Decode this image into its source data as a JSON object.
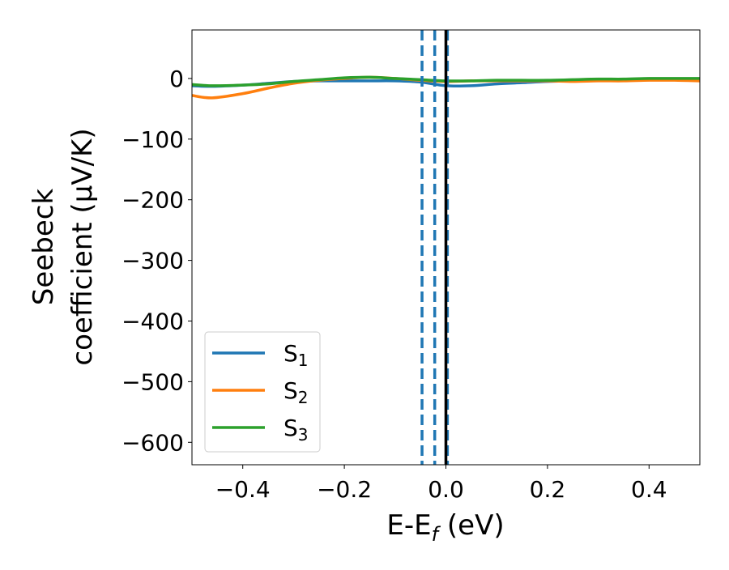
{
  "chart_data": {
    "type": "line",
    "title": "",
    "xlabel": {
      "main": "E-E",
      "sub": "f",
      "unit": " (eV)"
    },
    "ylabel": {
      "line1": "Seebeck",
      "line2": "coefficient  (μV/K)"
    },
    "xlim": [
      -0.5,
      0.5
    ],
    "ylim": [
      -637,
      80
    ],
    "xticks": [
      -0.4,
      -0.2,
      0.0,
      0.2,
      0.4
    ],
    "xtick_labels": [
      "−0.4",
      "−0.2",
      "0.0",
      "0.2",
      "0.4"
    ],
    "yticks": [
      0,
      -100,
      -200,
      -300,
      -400,
      -500,
      -600
    ],
    "ytick_labels": [
      "0",
      "−100",
      "−200",
      "−300",
      "−400",
      "−500",
      "−600"
    ],
    "grid": false,
    "legend_placement": "lower-left",
    "vlines": [
      {
        "x": -0.047,
        "color": "#1f77b4",
        "style": "dashed"
      },
      {
        "x": -0.022,
        "color": "#1f77b4",
        "style": "dashed"
      },
      {
        "x": 0.003,
        "color": "#1f77b4",
        "style": "dashed"
      },
      {
        "x": 0.0,
        "color": "#000000",
        "style": "solid"
      }
    ],
    "x": [
      -0.5,
      -0.46,
      -0.4,
      -0.35,
      -0.3,
      -0.25,
      -0.2,
      -0.15,
      -0.1,
      -0.05,
      0.0,
      0.05,
      0.1,
      0.15,
      0.2,
      0.25,
      0.3,
      0.35,
      0.4,
      0.45,
      0.5
    ],
    "series": [
      {
        "name": "S",
        "sub": "1",
        "color": "#1f77b4",
        "values": [
          -12,
          -13,
          -11,
          -8,
          -5,
          -4,
          -4,
          -4,
          -4,
          -6,
          -12,
          -12,
          -9,
          -7,
          -5,
          -4,
          -3,
          -2,
          -1,
          -1,
          -1
        ]
      },
      {
        "name": "S",
        "sub": "2",
        "color": "#ff7f0e",
        "values": [
          -28,
          -32,
          -25,
          -16,
          -8,
          -3,
          0,
          2,
          0,
          -3,
          -5,
          -4,
          -4,
          -4,
          -4,
          -5,
          -4,
          -4,
          -3,
          -3,
          -4
        ]
      },
      {
        "name": "S",
        "sub": "3",
        "color": "#2ca02c",
        "values": [
          -10,
          -12,
          -11,
          -9,
          -5,
          -2,
          1,
          2,
          0,
          -2,
          -4,
          -4,
          -3,
          -3,
          -3,
          -2,
          -1,
          -1,
          0,
          0,
          0
        ]
      }
    ]
  }
}
